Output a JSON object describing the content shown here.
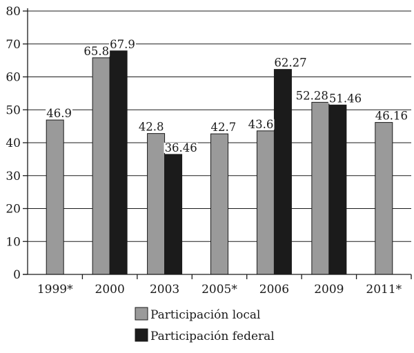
{
  "chart_data": {
    "type": "bar",
    "categories": [
      "1999*",
      "2000",
      "2003",
      "2005*",
      "2006",
      "2009",
      "2011*"
    ],
    "series": [
      {
        "name": "Participación local",
        "color": "#9a9a9a",
        "values": [
          46.9,
          65.8,
          42.8,
          42.7,
          43.6,
          52.28,
          46.16
        ],
        "labels": [
          "46.9",
          "65.8",
          "42.8",
          "42.7",
          "43.6",
          "52.28",
          "46.16"
        ]
      },
      {
        "name": "Participación federal",
        "color": "#1b1b1b",
        "values": [
          null,
          67.9,
          36.46,
          null,
          62.27,
          51.46,
          null
        ],
        "labels": [
          "",
          "67.9",
          "36.46",
          "",
          "62.27",
          "51.46",
          ""
        ]
      }
    ],
    "ylim": [
      0,
      80
    ],
    "yticks": [
      0,
      10,
      20,
      30,
      40,
      50,
      60,
      70,
      80
    ],
    "grid": true,
    "legend_position": "bottom-center",
    "title": "",
    "xlabel": "",
    "ylabel": ""
  }
}
